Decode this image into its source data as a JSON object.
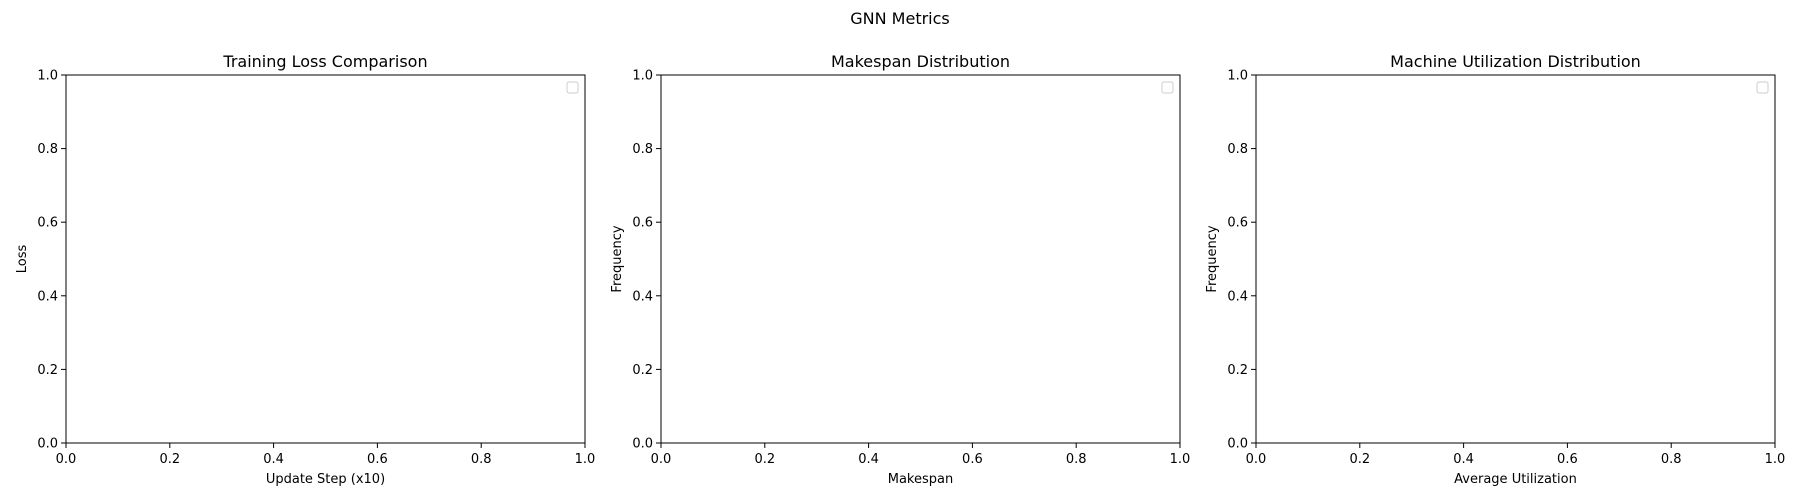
{
  "figure": {
    "suptitle": "GNN Metrics"
  },
  "chart_data": [
    {
      "type": "line",
      "title": "Training Loss Comparison",
      "xlabel": "Update Step (x10)",
      "ylabel": "Loss",
      "xlim": [
        0.0,
        1.0
      ],
      "ylim": [
        0.0,
        1.0
      ],
      "xticks": [
        "0.0",
        "0.2",
        "0.4",
        "0.6",
        "0.8",
        "1.0"
      ],
      "yticks": [
        "0.0",
        "0.2",
        "0.4",
        "0.6",
        "0.8",
        "1.0"
      ],
      "series": [],
      "legend": {
        "placement": "upper-right",
        "entries": []
      },
      "grid": false
    },
    {
      "type": "bar",
      "title": "Makespan Distribution",
      "xlabel": "Makespan",
      "ylabel": "Frequency",
      "xlim": [
        0.0,
        1.0
      ],
      "ylim": [
        0.0,
        1.0
      ],
      "xticks": [
        "0.0",
        "0.2",
        "0.4",
        "0.6",
        "0.8",
        "1.0"
      ],
      "yticks": [
        "0.0",
        "0.2",
        "0.4",
        "0.6",
        "0.8",
        "1.0"
      ],
      "series": [],
      "legend": {
        "placement": "upper-right",
        "entries": []
      },
      "grid": false
    },
    {
      "type": "bar",
      "title": "Machine Utilization Distribution",
      "xlabel": "Average Utilization",
      "ylabel": "Frequency",
      "xlim": [
        0.0,
        1.0
      ],
      "ylim": [
        0.0,
        1.0
      ],
      "xticks": [
        "0.0",
        "0.2",
        "0.4",
        "0.6",
        "0.8",
        "1.0"
      ],
      "yticks": [
        "0.0",
        "0.2",
        "0.4",
        "0.6",
        "0.8",
        "1.0"
      ],
      "series": [],
      "legend": {
        "placement": "upper-right",
        "entries": []
      },
      "grid": false
    }
  ]
}
